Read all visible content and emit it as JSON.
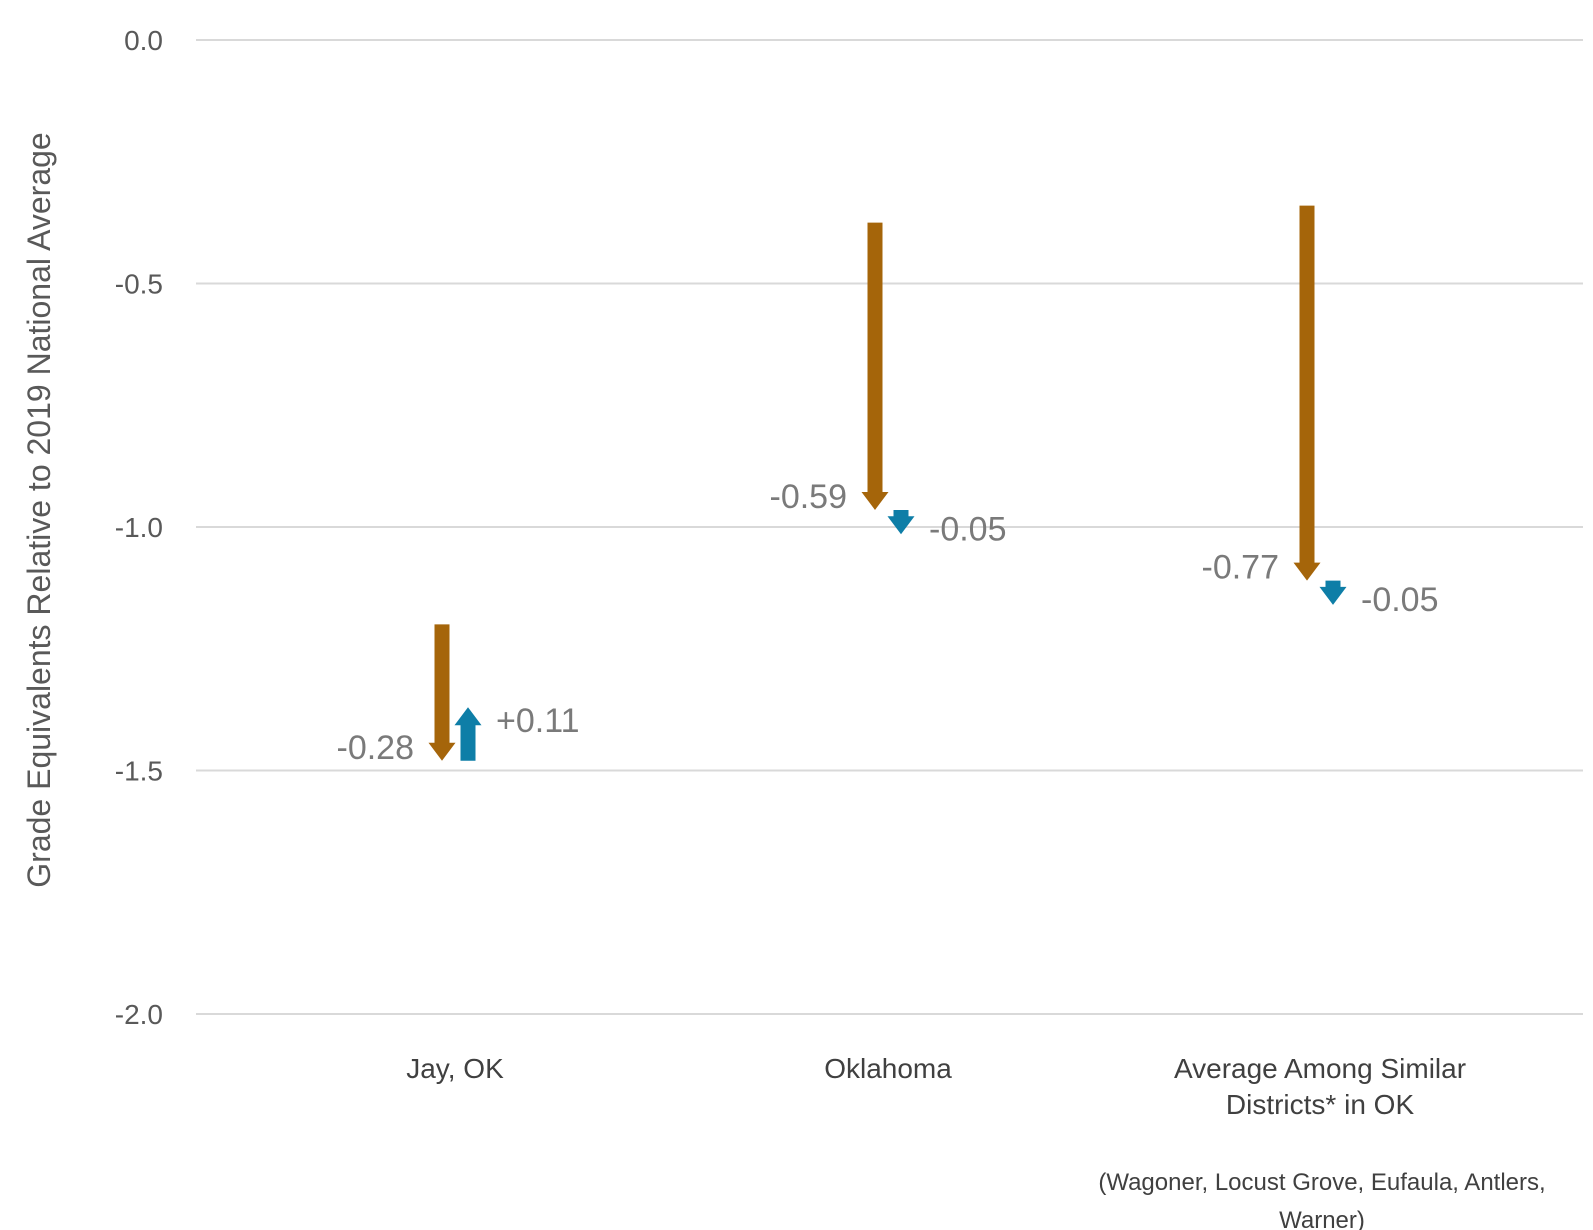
{
  "chart_data": {
    "type": "arrow",
    "title": "",
    "ylabel": "Grade Equivalents Relative to 2019 National Average",
    "ylim": [
      -2.0,
      0.0
    ],
    "yticks": [
      "0.0",
      "-0.5",
      "-1.0",
      "-1.5",
      "-2.0"
    ],
    "grid": true,
    "categories": [
      {
        "lines": [
          "Jay, OK"
        ],
        "note": []
      },
      {
        "lines": [
          "Oklahoma"
        ],
        "note": []
      },
      {
        "lines": [
          "Average Among Similar",
          "Districts* in OK"
        ],
        "note": [
          "(Wagoner, Locust Grove, Eufaula, Antlers,",
          "Warner)"
        ]
      }
    ],
    "series": [
      {
        "color": "#a5650a",
        "arrows": [
          {
            "start": -1.2,
            "end": -1.48,
            "label": "-0.28"
          },
          {
            "start": -0.375,
            "end": -0.965,
            "label": "-0.59"
          },
          {
            "start": -0.34,
            "end": -1.11,
            "label": "-0.77"
          }
        ]
      },
      {
        "color": "#0e7ea7",
        "arrows": [
          {
            "start": -1.48,
            "end": -1.37,
            "label": "+0.11"
          },
          {
            "start": -0.965,
            "end": -1.015,
            "label": "-0.05"
          },
          {
            "start": -1.11,
            "end": -1.16,
            "label": "-0.05"
          }
        ]
      }
    ]
  }
}
